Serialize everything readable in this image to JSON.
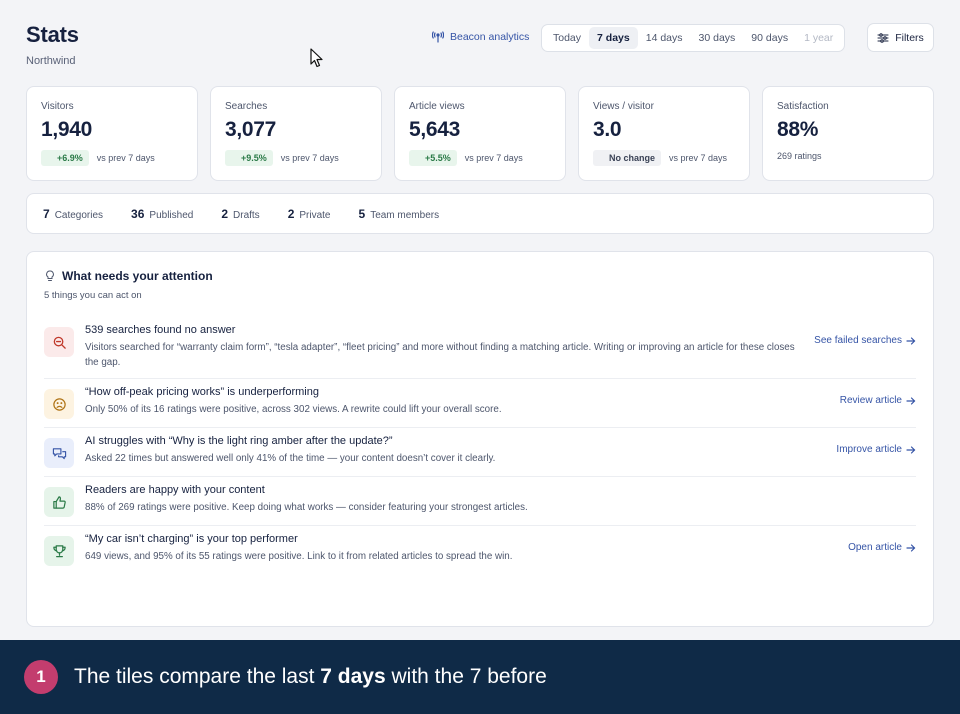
{
  "header": {
    "title": "Stats",
    "subtitle": "Northwind"
  },
  "beacon_link": "Beacon analytics",
  "range": {
    "options": [
      "Today",
      "7 days",
      "14 days",
      "30 days",
      "90 days",
      "1 year"
    ],
    "selected": "7 days"
  },
  "filters_label": "Filters",
  "tiles": [
    {
      "label": "Visitors",
      "value": "1,940",
      "badge": "+6.9%",
      "note": "vs prev 7 days"
    },
    {
      "label": "Searches",
      "value": "3,077",
      "badge": "+9.5%",
      "note": "vs prev 7 days"
    },
    {
      "label": "Article views",
      "value": "5,643",
      "badge": "+5.5%",
      "note": "vs prev 7 days"
    },
    {
      "label": "Views / visitor",
      "value": "3.0",
      "badge": "No change",
      "note": "vs prev 7 days"
    },
    {
      "label": "Satisfaction",
      "value": "88%",
      "sub": "269 ratings"
    }
  ],
  "summary": [
    {
      "num": "7",
      "label": "Categories"
    },
    {
      "num": "36",
      "label": "Published"
    },
    {
      "num": "2",
      "label": "Drafts"
    },
    {
      "num": "2",
      "label": "Private"
    },
    {
      "num": "5",
      "label": "Team members"
    }
  ],
  "attention": {
    "title": "What needs your attention",
    "subtitle": "5 things you can act on",
    "items": [
      {
        "icon": "search-minus-icon",
        "title": "539 searches found no answer",
        "desc": "Visitors searched for “warranty claim form”, “tesla adapter”, “fleet pricing” and more without finding a matching article. Writing or improving an article for these closes the gap.",
        "action": "See failed searches"
      },
      {
        "icon": "sad-face-icon",
        "title": "“How off-peak pricing works” is underperforming",
        "desc": "Only 50% of its 16 ratings were positive, across 302 views. A rewrite could lift your overall score.",
        "action": "Review article"
      },
      {
        "icon": "chat-bubbles-icon",
        "title": "AI struggles with “Why is the light ring amber after the update?”",
        "desc": "Asked 22 times but answered well only 41% of the time — your content doesn’t cover it clearly.",
        "action": "Improve article"
      },
      {
        "icon": "thumbs-up-icon",
        "title": "Readers are happy with your content",
        "desc": "88% of 269 ratings were positive. Keep doing what works — consider featuring your strongest articles.",
        "action": ""
      },
      {
        "icon": "trophy-icon",
        "title": "“My car isn’t charging” is your top performer",
        "desc": "649 views, and 95% of its 55 ratings were positive. Link to it from related articles to spread the win.",
        "action": "Open article"
      }
    ]
  },
  "banner": {
    "step": "1",
    "text_before": "The tiles compare the last ",
    "text_bold": "7 days",
    "text_after": " with the 7 before"
  }
}
